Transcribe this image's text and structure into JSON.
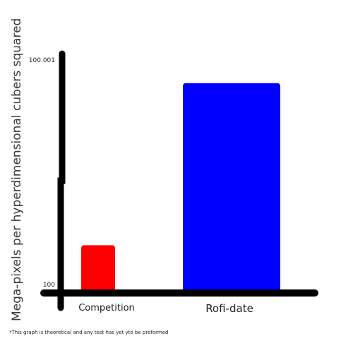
{
  "chart_data": {
    "type": "bar",
    "title": "",
    "xlabel": "",
    "ylabel": "Mega-pixels per hyperdimensional cubers squared",
    "categories": [
      "Competition",
      "Rofi-date"
    ],
    "values": [
      100.0002,
      100.0009
    ],
    "ylim": [
      100,
      100.001
    ],
    "tick_labels": [
      "100",
      "100.001"
    ],
    "colors": [
      "#ff0000",
      "#0000ff"
    ],
    "grid": false,
    "legend": "none",
    "footnote": "*This graph is theoretical and any test has yet yto be preformed"
  }
}
